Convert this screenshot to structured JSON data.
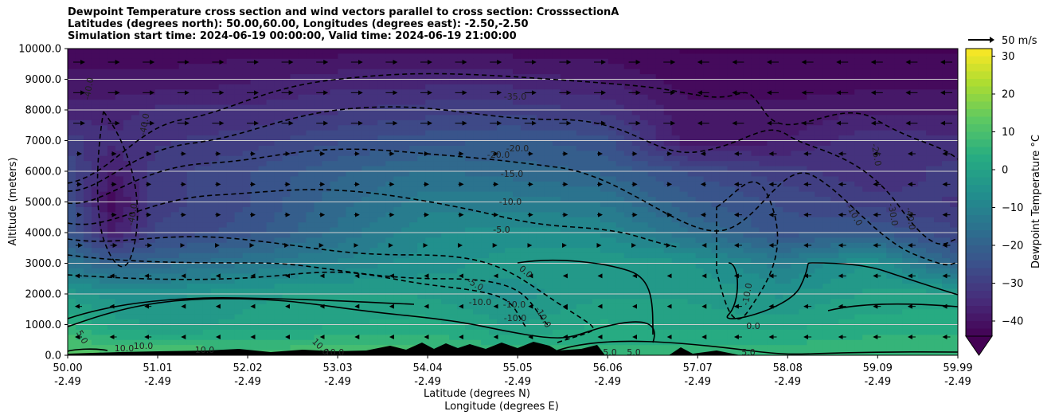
{
  "chart_data": {
    "type": "heatmap",
    "title_lines": [
      "Dewpoint Temperature cross section and wind vectors parallel to cross section: CrosssectionA",
      "Latitudes (degrees north): 50.00,60.00, Longitudes (degrees east): -2.50,-2.50",
      "Simulation start time: 2024-06-19 00:00:00, Valid time: 2024-06-19 21:00:00"
    ],
    "ylabel": "Altitude (meters)",
    "xlabel": "Latitude (degrees N)",
    "xlabel2": "Longitude (degrees E)",
    "ylim": [
      0,
      10000
    ],
    "xlim": [
      50.0,
      59.99
    ],
    "y_ticks": [
      "0.0",
      "1000.0",
      "2000.0",
      "3000.0",
      "4000.0",
      "5000.0",
      "6000.0",
      "7000.0",
      "8000.0",
      "9000.0",
      "10000.0"
    ],
    "x_ticks": [
      {
        "lat": "50.00",
        "lon": "-2.49"
      },
      {
        "lat": "51.01",
        "lon": "-2.49"
      },
      {
        "lat": "52.02",
        "lon": "-2.49"
      },
      {
        "lat": "53.03",
        "lon": "-2.49"
      },
      {
        "lat": "54.04",
        "lon": "-2.49"
      },
      {
        "lat": "55.05",
        "lon": "-2.49"
      },
      {
        "lat": "56.06",
        "lon": "-2.49"
      },
      {
        "lat": "57.07",
        "lon": "-2.49"
      },
      {
        "lat": "58.08",
        "lon": "-2.49"
      },
      {
        "lat": "59.09",
        "lon": "-2.49"
      },
      {
        "lat": "59.99",
        "lon": "-2.49"
      }
    ],
    "colorbar": {
      "label": "Dewpoint Temperature °C",
      "range": [
        -44,
        32
      ],
      "ticks": [
        "−40",
        "−30",
        "−20",
        "−10",
        "0",
        "10",
        "20",
        "30"
      ],
      "extend": "min",
      "colormap": "viridis"
    },
    "wind_key": "50 m/s",
    "grid": "horizontal",
    "dewpoint_profile": {
      "lat": [
        50.0,
        50.5,
        51.0,
        52.0,
        53.0,
        54.0,
        55.0,
        56.0,
        57.0,
        58.0,
        59.0,
        59.99
      ],
      "alt": [
        0,
        1000,
        2000,
        3000,
        4000,
        5000,
        6000,
        7000,
        8000,
        9000,
        10000
      ],
      "values": [
        [
          12,
          11,
          11,
          10,
          10,
          9,
          7,
          6,
          7,
          7,
          7,
          7
        ],
        [
          5,
          0,
          -2,
          -1,
          1,
          3,
          -2,
          2,
          0,
          0,
          3,
          3
        ],
        [
          -3,
          -6,
          -6,
          -2,
          -1,
          -2,
          -6,
          -2,
          -2,
          -5,
          -1,
          0
        ],
        [
          -14,
          -20,
          -18,
          -14,
          -10,
          -6,
          -3,
          -2,
          -4,
          -12,
          -4,
          -20
        ],
        [
          -22,
          -38,
          -28,
          -24,
          -16,
          -8,
          -6,
          -8,
          -16,
          -24,
          -22,
          -28
        ],
        [
          -24,
          -42,
          -30,
          -26,
          -18,
          -12,
          -12,
          -14,
          -22,
          -26,
          -30,
          -32
        ],
        [
          -26,
          -38,
          -30,
          -26,
          -20,
          -16,
          -18,
          -20,
          -26,
          -30,
          -34,
          -30
        ],
        [
          -30,
          -34,
          -32,
          -30,
          -26,
          -24,
          -22,
          -24,
          -40,
          -38,
          -32,
          -34
        ],
        [
          -36,
          -36,
          -34,
          -34,
          -32,
          -30,
          -30,
          -32,
          -40,
          -40,
          -38,
          -38
        ],
        [
          -40,
          -40,
          -40,
          -38,
          -36,
          -36,
          -36,
          -38,
          -42,
          -42,
          -42,
          -42
        ],
        [
          -42,
          -42,
          -42,
          -42,
          -42,
          -42,
          -42,
          -42,
          -44,
          -44,
          -44,
          -44
        ]
      ]
    },
    "contour_labels": [
      "-40.0",
      "-40.0",
      "-40.0",
      "-35.0",
      "-25.0",
      "-20.0",
      "-20.0",
      "-15.0",
      "-10.0",
      "-10.0",
      "-10.0",
      "-10.0",
      "-10.0",
      "-10.0",
      "-10.0",
      "-5.0",
      "-5.0",
      "-5.0",
      "-40.0",
      "-30.0",
      "0.0",
      "0.0",
      "5.0",
      "5.0",
      "5.0",
      "5.0",
      "10.0",
      "10.0",
      "10.0",
      "10.0",
      "10.0"
    ]
  }
}
